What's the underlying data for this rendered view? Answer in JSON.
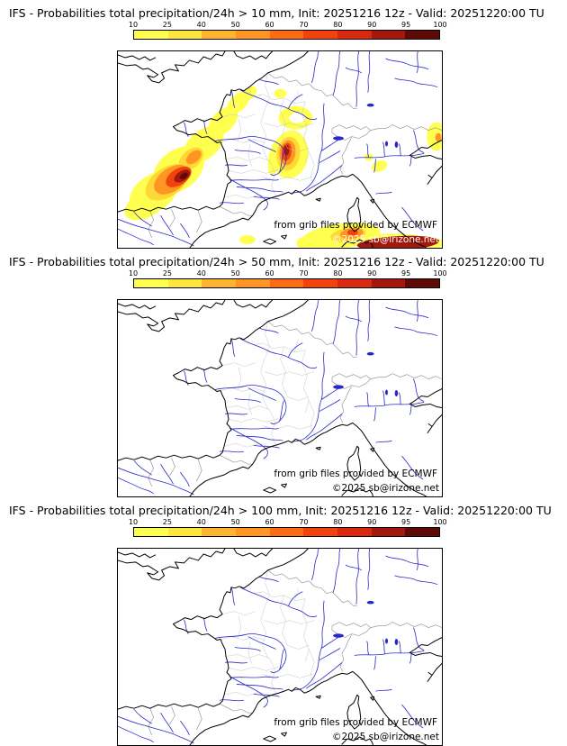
{
  "page": {
    "background_color": "#ffffff"
  },
  "scale": {
    "tick_labels": [
      "10",
      "25",
      "40",
      "50",
      "60",
      "70",
      "80",
      "90",
      "95",
      "100"
    ],
    "segment_colors": [
      "#FFFF50",
      "#FFE63C",
      "#FFB52E",
      "#FF9623",
      "#FF6A14",
      "#F4420E",
      "#D92A10",
      "#A3170C",
      "#5E0A06"
    ],
    "unit": "%"
  },
  "map": {
    "region": "France and surrounding Western Europe",
    "coastline_color": "#000000",
    "river_color": "#2828C8",
    "country_border_color": "#999999",
    "department_border_color": "#c6c6c6"
  },
  "panels": [
    {
      "title": "IFS - Probabilities total precipitation/24h > 10 mm, Init: 20251216 12z - Valid: 20251220:00 TU",
      "model": "IFS",
      "threshold": "> 10 mm",
      "init": "20251216 12z",
      "valid": "20251220:00 TU",
      "attribution": "from grib files provided by ECMWF",
      "copyright": "©2025 sb@irizone.net",
      "has_precip_overlay": true,
      "copyright_on_dark": true,
      "overlay_regions": [
        {
          "area": "southwest France (Aquitaine / Pyrenees)",
          "max_band": "95-100%"
        },
        {
          "area": "band stretching northeast toward Normandy",
          "max_band": "10-25%"
        },
        {
          "area": "Cevennes / lower Rhone valley",
          "max_band": "90-95%"
        },
        {
          "area": "Mediterranean sea south of France toward Sardinia",
          "max_band": "95-100%"
        },
        {
          "area": "central Italy at right map edge",
          "max_band": "40-50%"
        }
      ]
    },
    {
      "title": "IFS - Probabilities total precipitation/24h > 50 mm, Init: 20251216 12z - Valid: 20251220:00 TU",
      "model": "IFS",
      "threshold": "> 50 mm",
      "init": "20251216 12z",
      "valid": "20251220:00 TU",
      "attribution": "from grib files provided by ECMWF",
      "copyright": "©2025 sb@irizone.net",
      "has_precip_overlay": false,
      "copyright_on_dark": false,
      "overlay_regions": []
    },
    {
      "title": "IFS - Probabilities total precipitation/24h > 100 mm, Init: 20251216 12z - Valid: 20251220:00 TU",
      "model": "IFS",
      "threshold": "> 100 mm",
      "init": "20251216 12z",
      "valid": "20251220:00 TU",
      "attribution": "from grib files provided by ECMWF",
      "copyright": "©2025 sb@irizone.net",
      "has_precip_overlay": false,
      "copyright_on_dark": false,
      "overlay_regions": []
    }
  ]
}
